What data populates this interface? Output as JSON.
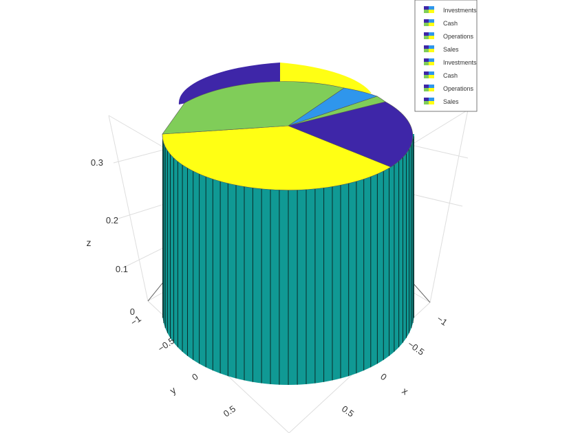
{
  "colors": {
    "yellow": "#ffff14",
    "green": "#80cd59",
    "blue": "#2f96ec",
    "purple": "#3e26a8",
    "side": "#109994",
    "grid": "#dddddd",
    "text": "#333333"
  },
  "axes": {
    "x": {
      "title": "x",
      "ticks": [
        "−1",
        "−0.5",
        "0",
        "0.5"
      ]
    },
    "y": {
      "title": "y",
      "ticks": [
        "−1",
        "−0.5",
        "0",
        "0.5"
      ]
    },
    "z": {
      "title": "z",
      "ticks": [
        "0",
        "0.1",
        "0.2",
        "0.3"
      ]
    }
  },
  "legend": {
    "items": [
      "Investments",
      "Cash",
      "Operations",
      "Sales",
      "Investments",
      "Cash",
      "Operations",
      "Sales"
    ]
  },
  "chart_data": {
    "type": "pie",
    "variant": "3d-extruded-pie",
    "title": "",
    "xlabel": "x",
    "ylabel": "y",
    "zlabel": "z",
    "zlim": [
      0,
      0.35
    ],
    "grid": true,
    "legend_position": "top-right",
    "series": [
      {
        "labels": [
          "Investments",
          "Cash",
          "Operations",
          "Sales"
        ],
        "values": [
          0.45,
          0.07,
          0.03,
          0.45
        ],
        "colors": [
          "#3e26a8",
          "#2f96ec",
          "#80cd59",
          "#ffff14"
        ],
        "z": 0
      },
      {
        "labels": [
          "Investments",
          "Cash",
          "Operations",
          "Sales"
        ],
        "values": [
          0.2,
          0.05,
          0.02,
          0.73
        ],
        "colors": [
          "#3e26a8",
          "#2f96ec",
          "#80cd59",
          "#ffff14"
        ],
        "z": 0.35
      }
    ]
  }
}
